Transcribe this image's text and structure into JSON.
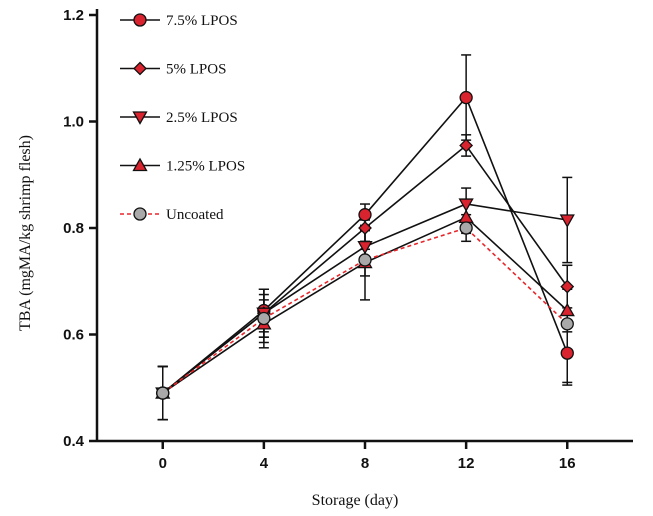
{
  "chart_data": {
    "type": "line",
    "title": "",
    "xlabel": "Storage (day)",
    "ylabel": "TBA (mgMA/kg shrimp flesh)",
    "x": [
      0,
      4,
      8,
      12,
      16
    ],
    "xticks": [
      "0",
      "4",
      "8",
      "12",
      "16"
    ],
    "xlim": [
      -2.6,
      18.6
    ],
    "ylim": [
      0.4,
      1.2
    ],
    "yticks": [
      "0.4",
      "0.6",
      "0.8",
      "1.0",
      "1.2"
    ],
    "grid": false,
    "legend_position": "top-left",
    "series": [
      {
        "name": "7.5% LPOS",
        "marker": "circle",
        "color": "#d9232e",
        "line_color": "#111111",
        "dash": false,
        "values": [
          0.49,
          0.645,
          0.825,
          1.045,
          0.565
        ],
        "errors": [
          0.05,
          0.04,
          0.02,
          0.08,
          0.06
        ]
      },
      {
        "name": "5% LPOS",
        "marker": "diamond",
        "color": "#d9232e",
        "line_color": "#111111",
        "dash": false,
        "values": [
          0.49,
          0.64,
          0.8,
          0.955,
          0.69
        ],
        "errors": [
          0.05,
          0.045,
          0.025,
          0.02,
          0.04
        ]
      },
      {
        "name": "2.5% LPOS",
        "marker": "triangle-down",
        "color": "#d9232e",
        "line_color": "#111111",
        "dash": false,
        "values": [
          0.49,
          0.64,
          0.765,
          0.845,
          0.815
        ],
        "errors": [
          0.05,
          0.045,
          0.03,
          0.03,
          0.08
        ]
      },
      {
        "name": "1.25% LPOS",
        "marker": "triangle-up",
        "color": "#d9232e",
        "line_color": "#111111",
        "dash": false,
        "values": [
          0.49,
          0.62,
          0.735,
          0.82,
          0.645
        ],
        "errors": [
          0.05,
          0.045,
          0.025,
          0.03,
          0.04
        ]
      },
      {
        "name": "Uncoated",
        "marker": "circle",
        "color": "#a9a9a9",
        "line_color": "#e8262a",
        "dash": true,
        "values": [
          0.49,
          0.63,
          0.74,
          0.8,
          0.62
        ],
        "errors": [
          0.05,
          0.045,
          0.075,
          0.025,
          0.11
        ]
      }
    ]
  }
}
